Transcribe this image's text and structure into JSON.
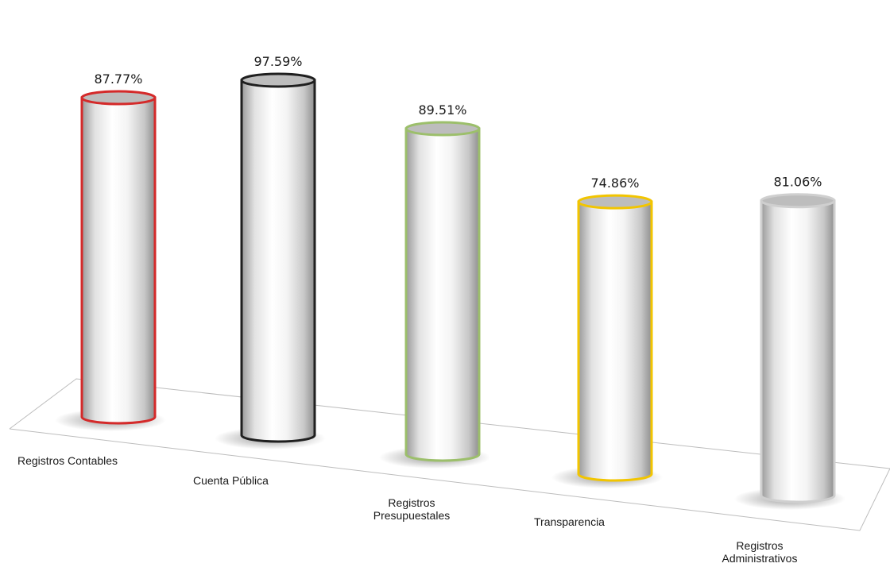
{
  "chart_data": {
    "type": "bar",
    "style": "3d-cylinder",
    "categories": [
      [
        "Registros Contables"
      ],
      [
        "Cuenta Pública"
      ],
      [
        "Registros",
        "Presupuestales"
      ],
      [
        "Transparencia"
      ],
      [
        "Registros",
        "Administrativos"
      ]
    ],
    "values": [
      87.77,
      97.59,
      89.51,
      74.86,
      81.06
    ],
    "value_labels": [
      "87.77%",
      "97.59%",
      "89.51%",
      "74.86%",
      "81.06%"
    ],
    "outline_colors": [
      "#d42a2a",
      "#1f1f1f",
      "#9cbf6b",
      "#f2c500",
      "#cfcfcf"
    ],
    "ylim": [
      0,
      100
    ],
    "grid": false,
    "legend": "none"
  }
}
